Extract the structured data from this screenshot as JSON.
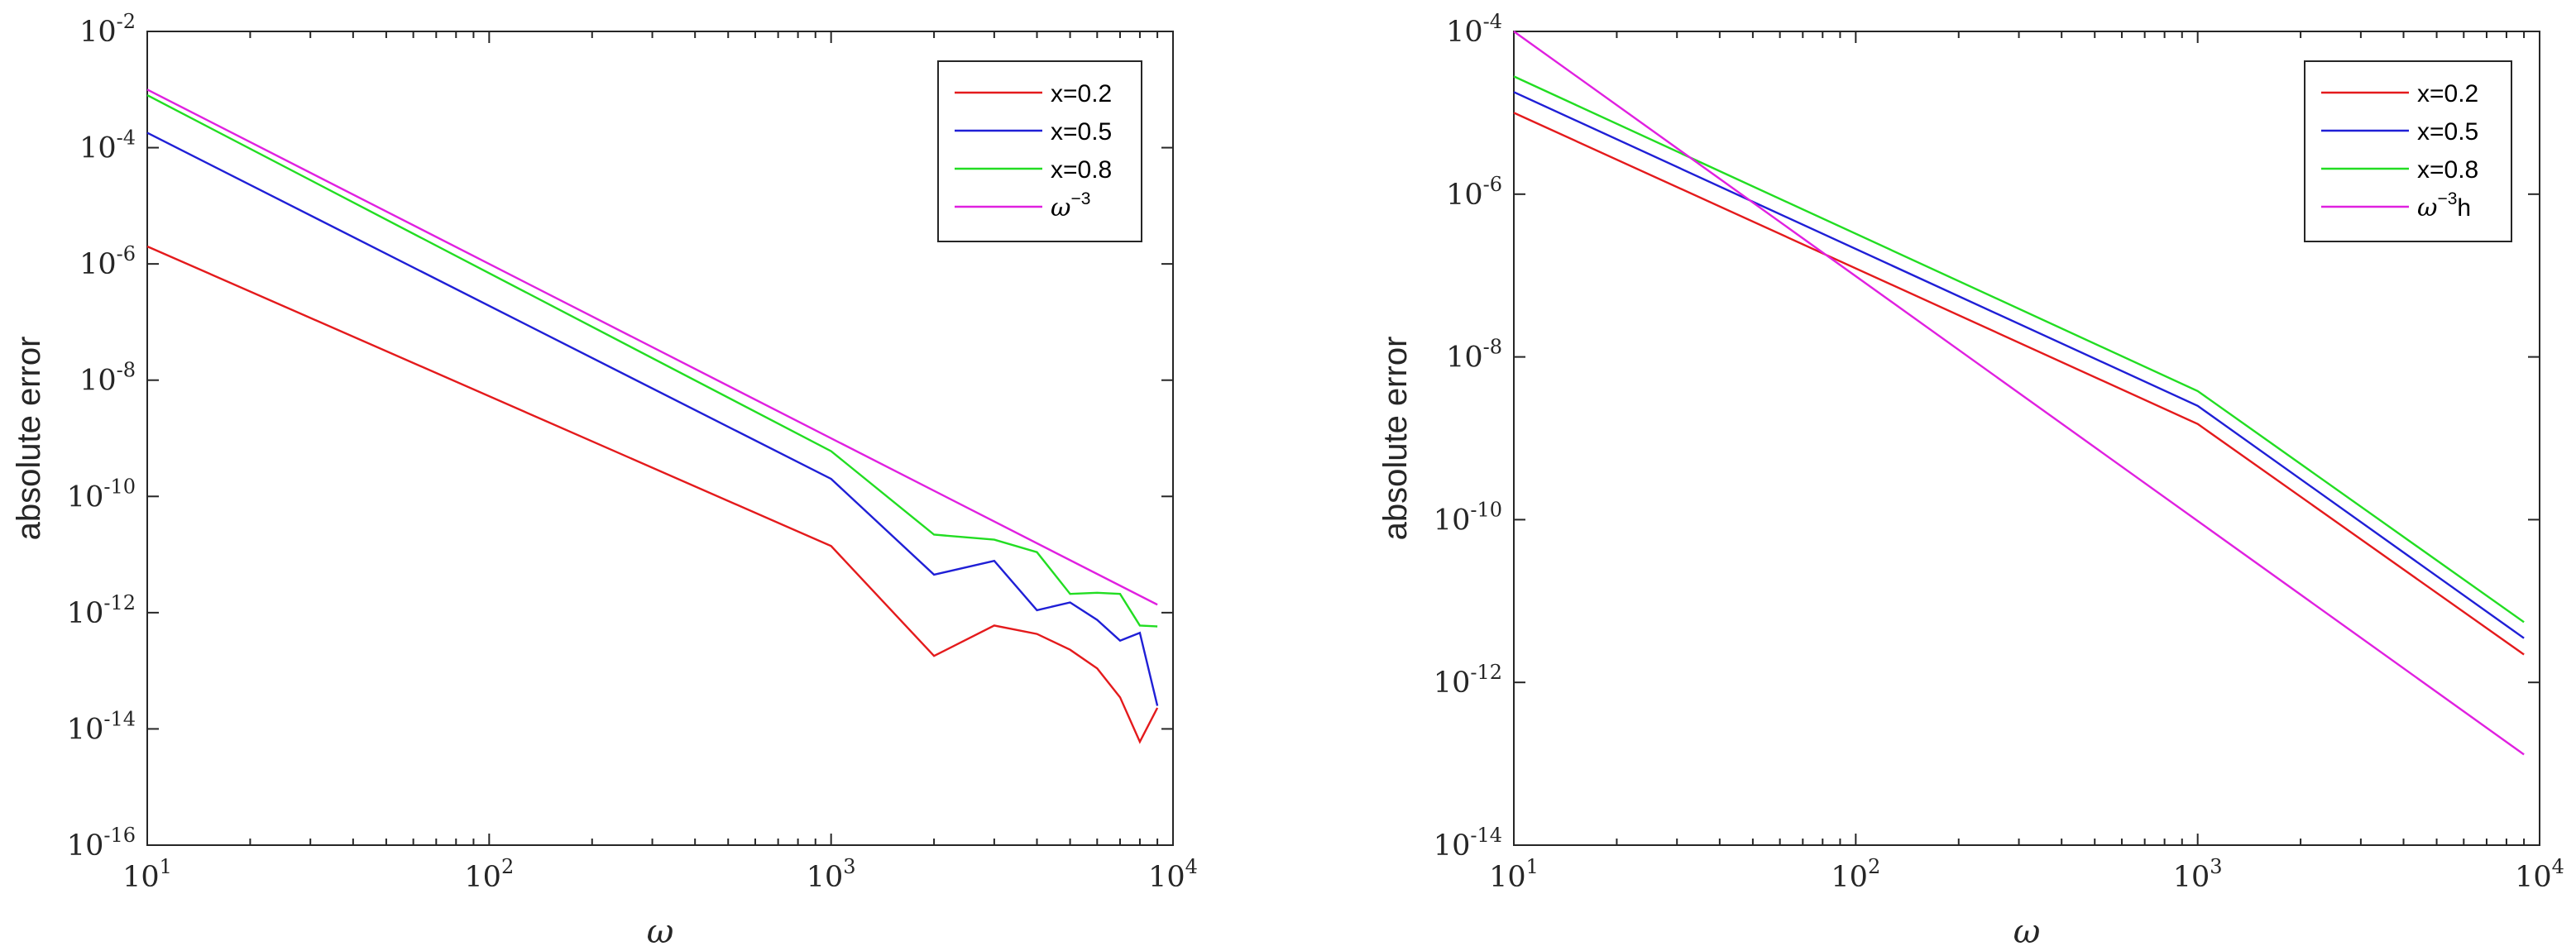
{
  "chart_data": [
    {
      "type": "line",
      "id": "left",
      "xscale": "log",
      "yscale": "log",
      "xlabel": "ω",
      "ylabel": "absolute error",
      "xlim": [
        10,
        10000
      ],
      "ylim": [
        1e-16,
        0.01
      ],
      "x_tick_labels": [
        {
          "base": "10",
          "exp": "1"
        },
        {
          "base": "10",
          "exp": "2"
        },
        {
          "base": "10",
          "exp": "3"
        },
        {
          "base": "10",
          "exp": "4"
        }
      ],
      "y_tick_labels": [
        {
          "base": "10",
          "exp": "-16"
        },
        {
          "base": "10",
          "exp": "-14"
        },
        {
          "base": "10",
          "exp": "-12"
        },
        {
          "base": "10",
          "exp": "-10"
        },
        {
          "base": "10",
          "exp": "-8"
        },
        {
          "base": "10",
          "exp": "-6"
        },
        {
          "base": "10",
          "exp": "-4"
        },
        {
          "base": "10",
          "exp": "-2"
        }
      ],
      "legend_position": "top-right",
      "series": [
        {
          "name": "x=0.2",
          "color": "#e41a1c",
          "x": [
            10,
            1000,
            2000,
            3000,
            4000,
            5000,
            6000,
            7000,
            8000,
            9000
          ],
          "y": [
            2e-06,
            1.4e-11,
            1.8e-13,
            6e-13,
            4.3e-13,
            2.3e-13,
            1.1e-13,
            3.5e-14,
            6e-15,
            2.3e-14
          ]
        },
        {
          "name": "x=0.5",
          "color": "#1f1fd6",
          "x": [
            10,
            1000,
            2000,
            3000,
            4000,
            5000,
            6000,
            7000,
            8000,
            9000
          ],
          "y": [
            0.00018,
            2e-10,
            4.5e-12,
            7.8e-12,
            1.1e-12,
            1.5e-12,
            7.5e-13,
            3.3e-13,
            4.5e-13,
            2.5e-14
          ]
        },
        {
          "name": "x=0.8",
          "color": "#22dd22",
          "x": [
            10,
            1000,
            2000,
            3000,
            4000,
            5000,
            6000,
            7000,
            8000,
            9000
          ],
          "y": [
            0.0008,
            6e-10,
            2.2e-11,
            1.8e-11,
            1.1e-11,
            2.1e-12,
            2.2e-12,
            2.1e-12,
            6e-13,
            5.8e-13
          ]
        },
        {
          "name": "ω",
          "name_exp": "−3",
          "color": "#e020e0",
          "x": [
            10,
            9000
          ],
          "y": [
            0.001,
            1.37e-12
          ]
        }
      ]
    },
    {
      "type": "line",
      "id": "right",
      "xscale": "log",
      "yscale": "log",
      "xlabel": "ω",
      "ylabel": "absolute error",
      "xlim": [
        10,
        10000
      ],
      "ylim": [
        1e-14,
        0.0001
      ],
      "x_tick_labels": [
        {
          "base": "10",
          "exp": "1"
        },
        {
          "base": "10",
          "exp": "2"
        },
        {
          "base": "10",
          "exp": "3"
        },
        {
          "base": "10",
          "exp": "4"
        }
      ],
      "y_tick_labels": [
        {
          "base": "10",
          "exp": "-14"
        },
        {
          "base": "10",
          "exp": "-12"
        },
        {
          "base": "10",
          "exp": "-10"
        },
        {
          "base": "10",
          "exp": "-8"
        },
        {
          "base": "10",
          "exp": "-6"
        },
        {
          "base": "10",
          "exp": "-4"
        }
      ],
      "legend_position": "top-right",
      "series": [
        {
          "name": "x=0.2",
          "color": "#e41a1c",
          "x": [
            10,
            1000,
            9000
          ],
          "y": [
            1e-05,
            1.5e-09,
            2.2e-12
          ]
        },
        {
          "name": "x=0.5",
          "color": "#1f1fd6",
          "x": [
            10,
            1000,
            9000
          ],
          "y": [
            1.8e-05,
            2.5e-09,
            3.5e-12
          ]
        },
        {
          "name": "x=0.8",
          "color": "#22dd22",
          "x": [
            10,
            1000,
            9000
          ],
          "y": [
            2.8e-05,
            3.8e-09,
            5.5e-12
          ]
        },
        {
          "name": "ω",
          "name_exp": "−3",
          "name_suffix": "h",
          "color": "#e020e0",
          "x": [
            10,
            9000
          ],
          "y": [
            0.0001,
            1.3e-13
          ]
        }
      ]
    }
  ]
}
